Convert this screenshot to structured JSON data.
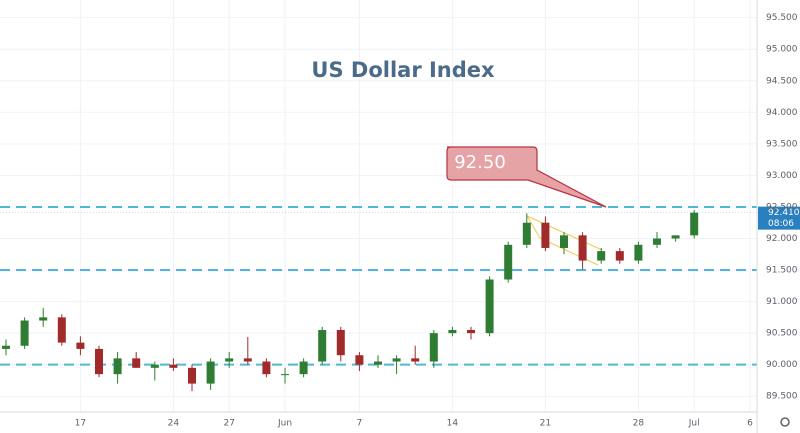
{
  "chart_data": {
    "type": "candlestick",
    "title": "US Dollar Index",
    "categories": [
      null,
      null,
      null,
      null,
      "17",
      null,
      null,
      null,
      null,
      "24",
      null,
      null,
      "27",
      null,
      null,
      "Jun",
      null,
      null,
      null,
      "7",
      null,
      null,
      null,
      null,
      "14",
      null,
      null,
      null,
      null,
      "21",
      null,
      null,
      null,
      null,
      "28",
      null,
      null,
      "Jul",
      null,
      null,
      "6"
    ],
    "open": [
      90.25,
      90.3,
      90.7,
      90.75,
      90.35,
      90.25,
      89.85,
      90.1,
      89.95,
      90.0,
      89.95,
      89.7,
      90.05,
      90.1,
      90.05,
      89.85,
      89.85,
      90.05,
      90.55,
      90.15,
      90.0,
      90.05,
      90.1,
      90.05,
      90.5,
      90.55,
      90.5,
      91.35,
      91.9,
      92.25,
      91.85,
      92.05,
      91.65,
      91.8,
      91.65,
      91.9,
      92.0,
      92.05,
      null,
      null,
      null
    ],
    "high": [
      90.4,
      90.75,
      90.9,
      90.8,
      90.45,
      90.3,
      90.2,
      90.2,
      90.05,
      90.1,
      90.0,
      90.1,
      90.2,
      90.44,
      90.1,
      89.95,
      90.1,
      90.6,
      90.6,
      90.2,
      90.15,
      90.15,
      90.3,
      90.55,
      90.6,
      90.6,
      91.4,
      91.95,
      92.4,
      92.35,
      92.1,
      92.1,
      91.85,
      91.85,
      91.95,
      92.1,
      92.05,
      92.45,
      null,
      null,
      null
    ],
    "low": [
      90.15,
      90.25,
      90.6,
      90.3,
      90.15,
      89.8,
      89.7,
      89.95,
      89.75,
      89.9,
      89.58,
      89.6,
      89.95,
      90.0,
      89.8,
      89.7,
      89.8,
      90.0,
      90.05,
      89.9,
      89.95,
      89.85,
      90.0,
      89.95,
      90.45,
      90.4,
      90.45,
      91.3,
      91.85,
      91.8,
      91.75,
      91.51,
      91.6,
      91.6,
      91.6,
      91.85,
      91.95,
      92.0,
      null,
      null,
      null
    ],
    "close": [
      90.3,
      90.7,
      90.75,
      90.35,
      90.25,
      89.85,
      90.1,
      89.95,
      90.0,
      89.95,
      89.7,
      90.05,
      90.1,
      90.05,
      89.85,
      89.85,
      90.05,
      90.55,
      90.15,
      90.0,
      90.05,
      90.1,
      90.05,
      90.5,
      90.55,
      90.5,
      91.35,
      91.9,
      92.25,
      91.85,
      92.05,
      91.65,
      91.8,
      91.65,
      91.9,
      92.0,
      92.05,
      92.41,
      null,
      null,
      null
    ],
    "up_color": "#2e7d32",
    "down_color": "#a12a2a",
    "ylim": [
      89.25,
      95.78
    ],
    "yticks": [
      {
        "value": 89.5,
        "label": "89.500"
      },
      {
        "value": 90,
        "label": "90.000"
      },
      {
        "value": 90.5,
        "label": "90.500"
      },
      {
        "value": 91,
        "label": "91.000"
      },
      {
        "value": 91.5,
        "label": "91.500"
      },
      {
        "value": 92,
        "label": "92.000"
      },
      {
        "value": 92.5,
        "label": "92.500"
      },
      {
        "value": 93,
        "label": "93.000"
      },
      {
        "value": 93.5,
        "label": "93.500"
      },
      {
        "value": 94,
        "label": "94.000"
      },
      {
        "value": 94.5,
        "label": "94.500"
      },
      {
        "value": 95,
        "label": "95.000"
      },
      {
        "value": 95.5,
        "label": "95.500"
      }
    ],
    "grid": true,
    "levels": [
      92.5,
      91.5,
      90
    ],
    "level_color": "#4fb8d8",
    "annotation": "92.50",
    "last_price": {
      "value": 92.41,
      "label": "92.410"
    },
    "countdown": "08:06"
  }
}
